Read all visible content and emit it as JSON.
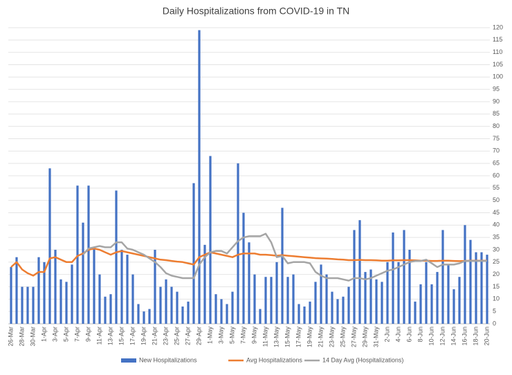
{
  "chart_data": {
    "type": "bar",
    "title": "Daily Hospitalizations from COVID-19 in TN",
    "categories": [
      "26-Mar",
      null,
      "28-Mar",
      null,
      "30-Mar",
      null,
      "1-Apr",
      null,
      "3-Apr",
      null,
      "5-Apr",
      null,
      "7-Apr",
      null,
      "9-Apr",
      null,
      "11-Apr",
      null,
      "13-Apr",
      null,
      "15-Apr",
      null,
      "17-Apr",
      null,
      "19-Apr",
      null,
      "21-Apr",
      null,
      "23-Apr",
      null,
      "25-Apr",
      null,
      "27-Apr",
      null,
      "29-Apr",
      null,
      "1-May",
      null,
      "3-May",
      null,
      "5-May",
      null,
      "7-May",
      null,
      "9-May",
      null,
      "11-May",
      null,
      "13-May",
      null,
      "15-May",
      null,
      "17-May",
      null,
      "19-May",
      null,
      "21-May",
      null,
      "23-May",
      null,
      "25-May",
      null,
      "27-May",
      null,
      "29-May",
      null,
      "31-May",
      null,
      "2-Jun",
      null,
      "4-Jun",
      null,
      "6-Jun",
      null,
      "8-Jun",
      null,
      "10-Jun",
      null,
      "12-Jun",
      null,
      "14-Jun",
      null,
      "16-Jun",
      null,
      "18-Jun",
      null,
      "20-Jun"
    ],
    "series": [
      {
        "name": "New Hospitalizations",
        "type": "bar",
        "color": "#4472c4",
        "values": [
          23,
          27,
          15,
          15,
          15,
          27,
          25,
          63,
          30,
          18,
          17,
          24,
          56,
          41,
          56,
          31,
          20,
          11,
          12,
          54,
          30,
          28,
          20,
          8,
          5,
          6,
          30,
          15,
          18,
          15,
          13,
          7,
          9,
          57,
          119,
          32,
          68,
          12,
          10,
          8,
          13,
          65,
          45,
          33,
          20,
          6,
          19,
          19,
          25,
          47,
          19,
          20,
          8,
          7,
          9,
          17,
          24,
          20,
          13,
          10,
          11,
          15,
          38,
          42,
          21,
          22,
          18,
          17,
          25,
          37,
          25,
          38,
          30,
          9,
          16,
          25,
          16,
          21,
          38,
          24,
          14,
          19,
          40,
          34,
          29,
          29,
          28
        ]
      },
      {
        "name": "Avg Hospitalizations",
        "type": "line",
        "color": "#ed7d31",
        "values": [
          23,
          25,
          22,
          20.5,
          19.5,
          21,
          21,
          26.5,
          27,
          26,
          25,
          25,
          27.5,
          28.5,
          30,
          30.5,
          30,
          29,
          28,
          29,
          29.5,
          29,
          28.5,
          28,
          27.5,
          27,
          26.5,
          26,
          25.8,
          25.5,
          25.2,
          25,
          24.5,
          24,
          27,
          28,
          29,
          28.5,
          28,
          27.5,
          27,
          28,
          28.5,
          28.5,
          28.5,
          28,
          28,
          27.8,
          27.6,
          27.8,
          27.6,
          27.4,
          27.2,
          27,
          26.8,
          26.6,
          26.5,
          26.4,
          26.3,
          26.1,
          26,
          25.8,
          25.8,
          25.9,
          25.8,
          25.8,
          25.7,
          25.6,
          25.6,
          25.7,
          25.7,
          25.8,
          25.8,
          25.7,
          25.6,
          25.6,
          25.5,
          25.5,
          25.6,
          25.6,
          25.5,
          25.4,
          25.5,
          25.6,
          25.6,
          25.6,
          25.6
        ]
      },
      {
        "name": "14 Day Avg (Hospitalizations)",
        "type": "line",
        "color": "#a5a5a5",
        "values": [
          null,
          null,
          null,
          null,
          null,
          null,
          null,
          null,
          null,
          null,
          null,
          null,
          null,
          28,
          30.5,
          31,
          31.5,
          31,
          31,
          33,
          33,
          30.5,
          30,
          29,
          28,
          26.5,
          25,
          23,
          20.5,
          19.5,
          19,
          18.5,
          18.5,
          18.5,
          24,
          27,
          29,
          29.5,
          29.5,
          28.5,
          31,
          33.5,
          35,
          35.5,
          35.5,
          35.5,
          36.5,
          33,
          27,
          27.5,
          24.5,
          25,
          25,
          25,
          24.5,
          21,
          19.5,
          18.5,
          18.5,
          18.5,
          18,
          17.5,
          18.5,
          18.5,
          18,
          18.5,
          19.5,
          20.5,
          21.5,
          22,
          23,
          24,
          25,
          25.5,
          25.5,
          26,
          24.5,
          23,
          24,
          24,
          24,
          24.5,
          25.5,
          25.5,
          25.5,
          25.5,
          25.5
        ]
      }
    ],
    "ylim": [
      0,
      120
    ],
    "yticks": [
      0,
      5,
      10,
      15,
      20,
      25,
      30,
      35,
      40,
      45,
      50,
      55,
      60,
      65,
      70,
      75,
      80,
      85,
      90,
      95,
      100,
      105,
      110,
      115,
      120
    ],
    "grid": true,
    "legend": "bottom"
  }
}
